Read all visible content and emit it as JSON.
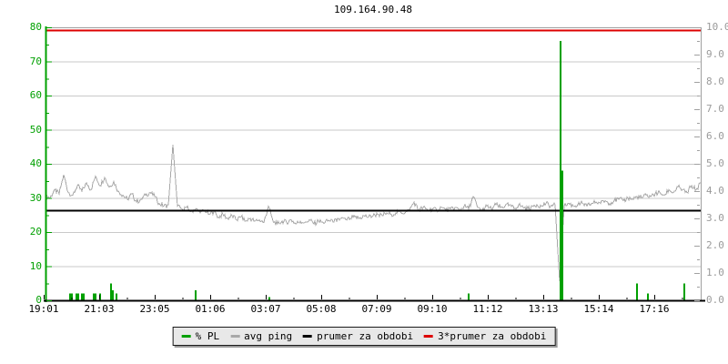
{
  "title": "109.164.90.48",
  "colors": {
    "background": "#ffffff",
    "pl_green": "#00a000",
    "avg_ping_gray": "#a8a8a8",
    "period_avg_black": "#000000",
    "period_avg3_red": "#dd0000",
    "grid": "#c9c9c9",
    "plot_border": "#a0a0a0",
    "right_label_gray": "#9a9a9a",
    "legend_bg": "#e8e8e8"
  },
  "chart_data": {
    "type": "line",
    "title": "109.164.90.48",
    "grid": "horizontal-only",
    "legend_position": "bottom-center",
    "x_axis": {
      "tick_labels": [
        "19:01",
        "21:03",
        "23:05",
        "01:06",
        "03:07",
        "05:08",
        "07:09",
        "09:10",
        "11:12",
        "13:13",
        "15:14",
        "17:16"
      ],
      "span_hours": 24
    },
    "y_left": {
      "min": 0,
      "max": 80,
      "tick_step": 10,
      "minor_step": 5,
      "tick_labels": [
        "0",
        "10",
        "20",
        "30",
        "40",
        "50",
        "60",
        "70",
        "80"
      ],
      "measures": "% PL (packet loss)",
      "color": "#00a000"
    },
    "y_right": {
      "min": 0.0,
      "max": 10.0,
      "tick_step": 1.0,
      "minor_step": 0.5,
      "tick_labels": [
        "0.0",
        "1.0",
        "2.0",
        "3.0",
        "4.0",
        "5.0",
        "6.0",
        "7.0",
        "8.0",
        "9.0",
        "10.0"
      ],
      "measures": "ping (ms)",
      "color": "#9a9a9a"
    },
    "series": [
      {
        "name": "% PL",
        "type": "bar",
        "axis": "left",
        "unit": "%",
        "color": "#00a000",
        "points": [
          {
            "x_frac": 0.0375,
            "time": "19:55",
            "value": 2
          },
          {
            "x_frac": 0.0403,
            "time": "19:59",
            "value": 2
          },
          {
            "x_frac": 0.0472,
            "time": "20:09",
            "value": 2
          },
          {
            "x_frac": 0.05,
            "time": "20:13",
            "value": 2
          },
          {
            "x_frac": 0.0556,
            "time": "20:21",
            "value": 2
          },
          {
            "x_frac": 0.0583,
            "time": "20:25",
            "value": 2
          },
          {
            "x_frac": 0.0736,
            "time": "20:47",
            "value": 2
          },
          {
            "x_frac": 0.0764,
            "time": "20:51",
            "value": 2
          },
          {
            "x_frac": 0.0833,
            "time": "21:01",
            "value": 2
          },
          {
            "x_frac": 0.1,
            "time": "21:25",
            "value": 5
          },
          {
            "x_frac": 0.1028,
            "time": "21:29",
            "value": 3
          },
          {
            "x_frac": 0.1083,
            "time": "21:37",
            "value": 2
          },
          {
            "x_frac": 0.2292,
            "time": "00:31",
            "value": 3
          },
          {
            "x_frac": 0.3417,
            "time": "03:13",
            "value": 1
          },
          {
            "x_frac": 0.6458,
            "time": "10:31",
            "value": 2
          },
          {
            "x_frac": 0.7861,
            "time": "13:53",
            "value": 76
          },
          {
            "x_frac": 0.7889,
            "time": "13:57",
            "value": 38
          },
          {
            "x_frac": 0.9028,
            "time": "16:41",
            "value": 5
          },
          {
            "x_frac": 0.9194,
            "time": "17:05",
            "value": 2
          },
          {
            "x_frac": 0.975,
            "time": "18:25",
            "value": 5
          }
        ]
      },
      {
        "name": "avg ping",
        "type": "line",
        "axis": "right",
        "unit": "ms",
        "color": "#a8a8a8",
        "sampling": "145 evenly spaced samples across full x-range",
        "values": [
          3.85,
          3.75,
          4.05,
          3.9,
          4.6,
          3.95,
          3.85,
          4.2,
          4.0,
          4.3,
          4.05,
          4.55,
          4.2,
          4.5,
          4.15,
          4.35,
          4.0,
          3.85,
          3.7,
          3.9,
          3.6,
          3.7,
          3.85,
          3.95,
          3.8,
          3.55,
          3.45,
          3.5,
          5.7,
          3.45,
          3.35,
          3.4,
          3.25,
          3.35,
          3.2,
          3.3,
          3.15,
          3.25,
          3.05,
          3.15,
          3.0,
          3.1,
          2.95,
          3.05,
          2.9,
          3.0,
          2.9,
          2.95,
          2.85,
          3.45,
          2.9,
          2.8,
          2.9,
          2.85,
          2.95,
          2.8,
          2.9,
          2.85,
          2.95,
          2.8,
          2.9,
          2.85,
          2.9,
          2.95,
          2.9,
          3.0,
          2.95,
          3.0,
          3.05,
          3.0,
          3.1,
          3.05,
          3.1,
          3.15,
          3.1,
          3.2,
          3.15,
          3.2,
          3.25,
          3.2,
          3.3,
          3.6,
          3.3,
          3.4,
          3.3,
          3.35,
          3.3,
          3.4,
          3.3,
          3.35,
          3.4,
          3.3,
          3.45,
          3.35,
          3.8,
          3.4,
          3.3,
          3.45,
          3.35,
          3.5,
          3.4,
          3.45,
          3.5,
          3.35,
          3.5,
          3.4,
          3.35,
          3.45,
          3.5,
          3.45,
          3.55,
          3.45,
          3.5,
          0.7,
          3.45,
          3.55,
          3.45,
          3.5,
          3.55,
          3.45,
          3.55,
          3.6,
          3.55,
          3.65,
          3.55,
          3.65,
          3.7,
          3.65,
          3.75,
          3.7,
          3.8,
          3.75,
          3.85,
          3.8,
          3.9,
          3.95,
          3.85,
          4.05,
          3.95,
          4.15,
          4.05,
          3.95,
          4.2,
          4.05,
          4.3
        ]
      },
      {
        "name": "prumer za obdobi",
        "type": "hline",
        "axis": "right",
        "unit": "ms",
        "color": "#000000",
        "value": 3.3
      },
      {
        "name": "3*prumer za obdobi",
        "type": "hline",
        "axis": "right",
        "unit": "ms",
        "color": "#dd0000",
        "value": 9.9
      }
    ]
  },
  "legend": {
    "items": [
      {
        "label": "% PL",
        "color": "#00a000"
      },
      {
        "label": "avg ping",
        "color": "#a8a8a8"
      },
      {
        "label": "prumer za obdobi",
        "color": "#000000"
      },
      {
        "label": "3*prumer za obdobi",
        "color": "#dd0000"
      }
    ]
  }
}
